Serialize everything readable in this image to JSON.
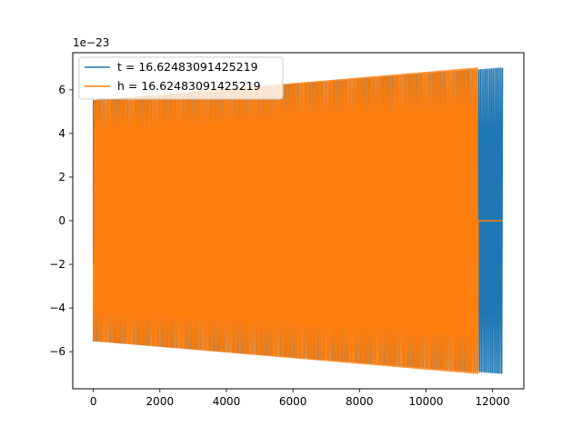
{
  "chart_data": {
    "type": "line",
    "title": "",
    "xlabel": "",
    "ylabel": "",
    "y_offset_label": "1e−23",
    "xlim": [
      -620,
      12940
    ],
    "ylim": [
      -7.7,
      7.7
    ],
    "x_ticks": [
      0,
      2000,
      4000,
      6000,
      8000,
      10000,
      12000
    ],
    "x_tick_labels": [
      "0",
      "2000",
      "4000",
      "6000",
      "8000",
      "10000",
      "12000"
    ],
    "y_ticks": [
      -6,
      -4,
      -2,
      0,
      2,
      4,
      6
    ],
    "y_tick_labels": [
      "−6",
      "−4",
      "−2",
      "0",
      "2",
      "4",
      "6"
    ],
    "grid": false,
    "legend_position": "upper-left",
    "series": [
      {
        "name": "t = 16.62483091425219",
        "color": "#1f77b4",
        "x_start": 0,
        "x_end": 12300,
        "amplitude_start": 5.5,
        "amplitude_end": 7.0,
        "initial_value": -2.0,
        "post_signal_value": null
      },
      {
        "name": "h = 16.62483091425219",
        "color": "#ff7f0e",
        "x_start": 0,
        "x_end": 11560,
        "amplitude_start": 5.5,
        "amplitude_end": 7.0,
        "initial_value": -4.4,
        "post_signal_value": 0,
        "post_signal_end": 12300
      }
    ]
  }
}
